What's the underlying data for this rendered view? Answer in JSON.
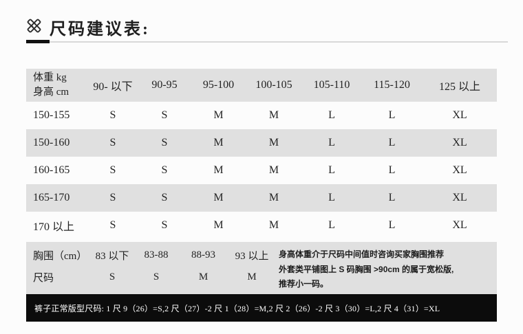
{
  "page": {
    "title": "尺码建议表:",
    "title_icon": "ruler-pencil-icon"
  },
  "chart_data": [
    {
      "type": "table",
      "name": "height-weight-size-table",
      "title": "尺码建议表:",
      "corner_header": [
        "体重 kg",
        "身高 cm"
      ],
      "weight_columns": [
        "90- 以下",
        "90-95",
        "95-100",
        "100-105",
        "105-110",
        "115-120",
        "125 以上"
      ],
      "rows": [
        {
          "height": "150-155",
          "sizes": [
            "S",
            "S",
            "M",
            "M",
            "L",
            "L",
            "XL"
          ]
        },
        {
          "height": "150-160",
          "sizes": [
            "S",
            "S",
            "M",
            "M",
            "L",
            "L",
            "XL"
          ]
        },
        {
          "height": "160-165",
          "sizes": [
            "S",
            "S",
            "M",
            "M",
            "L",
            "L",
            "XL"
          ]
        },
        {
          "height": "165-170",
          "sizes": [
            "S",
            "S",
            "M",
            "M",
            "L",
            "L",
            "XL"
          ]
        },
        {
          "height": "170 以上",
          "sizes": [
            "S",
            "S",
            "M",
            "M",
            "L",
            "L",
            "XL"
          ]
        }
      ]
    },
    {
      "type": "table",
      "name": "chest-size-table",
      "row_labels": [
        "胸围（cm）",
        "尺码"
      ],
      "chest_ranges": [
        "83 以下",
        "83-88",
        "88-93",
        "93 以上"
      ],
      "sizes": [
        "S",
        "S",
        "M",
        "M"
      ],
      "notes": [
        "身高体重介于尺码中间值时咨询买家胸围推荐",
        "外套类平铺图上 S 码胸围 >90cm 的属于宽松版,",
        "推荐小一码。"
      ]
    }
  ],
  "pants_note": "裤子正常版型尺码: 1 尺 9（26）=S,2 尺（27）-2 尺 1（28）=M,2 尺 2（26）-2 尺 3（30）=L,2 尺 4（31）=XL",
  "colors": {
    "row_alt": "#e0e0e0",
    "bar_bg": "#0c0c0c",
    "bar_text": "#ffffff",
    "text": "#232323",
    "rule_black": "#111111",
    "rule_gray": "#d8d8d8"
  }
}
